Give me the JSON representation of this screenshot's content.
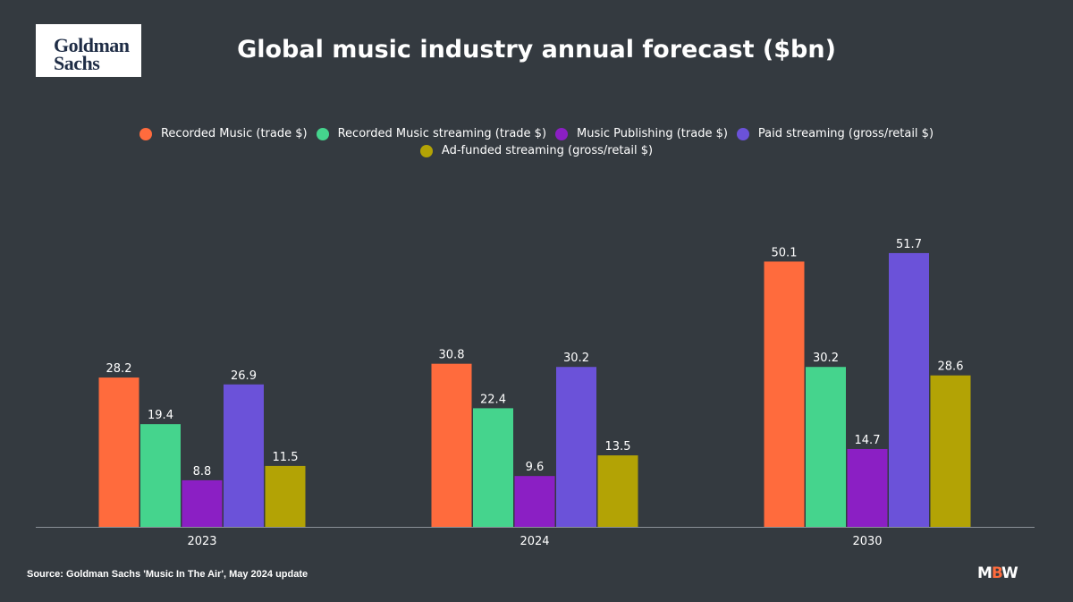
{
  "logo": {
    "line1": "Goldman",
    "line2": "Sachs"
  },
  "source": "Source: Goldman Sachs 'Music In The Air', May 2024 update",
  "brand": {
    "m": "M",
    "b": "B",
    "w": "W"
  },
  "chart_data": {
    "type": "bar",
    "title": "Global music industry annual forecast ($bn)",
    "xlabel": "",
    "ylabel": "",
    "categories": [
      "2023",
      "2024",
      "2030"
    ],
    "ylim": [
      0,
      60
    ],
    "grid": false,
    "legend_position": "top",
    "data_labels": true,
    "series": [
      {
        "name": "Recorded Music (trade $)",
        "color": "#ff6b3d",
        "values": [
          28.2,
          30.8,
          50.1
        ]
      },
      {
        "name": "Recorded Music streaming (trade $)",
        "color": "#45d48d",
        "values": [
          19.4,
          22.4,
          30.2
        ]
      },
      {
        "name": "Music Publishing (trade $)",
        "color": "#8b1fc4",
        "values": [
          8.8,
          9.6,
          14.7
        ]
      },
      {
        "name": "Paid streaming (gross/retail $)",
        "color": "#6b52d9",
        "values": [
          26.9,
          30.2,
          51.7
        ]
      },
      {
        "name": "Ad-funded streaming (gross/retail $)",
        "color": "#b3a305",
        "values": [
          11.5,
          13.5,
          28.6
        ]
      }
    ]
  }
}
